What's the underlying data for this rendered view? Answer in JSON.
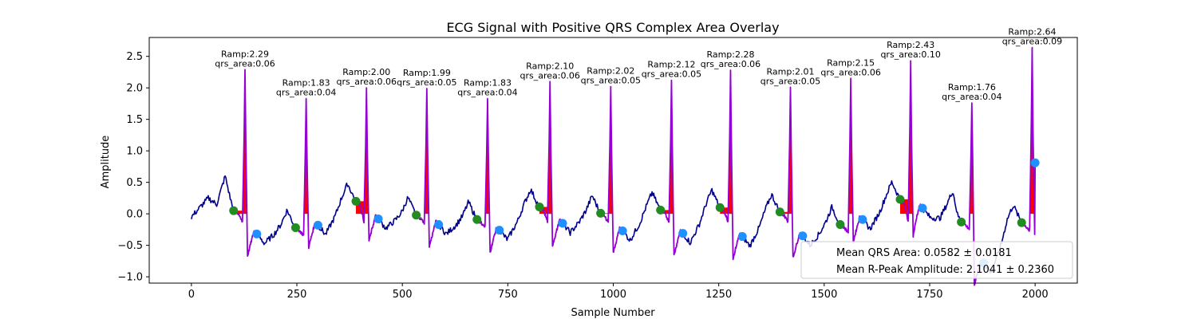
{
  "chart_data": {
    "type": "line",
    "title": "ECG Signal with Positive QRS Complex Area Overlay",
    "xlabel": "Sample Number",
    "ylabel": "Amplitude",
    "xlim": [
      -100,
      2100
    ],
    "ylim": [
      -1.1,
      2.8
    ],
    "xticks": [
      0,
      250,
      500,
      750,
      1000,
      1250,
      1500,
      1750,
      2000
    ],
    "yticks": [
      -1.0,
      -0.5,
      0.0,
      0.5,
      1.0,
      1.5,
      2.0,
      2.5
    ],
    "xtick_labels": [
      "0",
      "250",
      "500",
      "750",
      "1000",
      "1250",
      "1500",
      "1750",
      "2000"
    ],
    "ytick_labels": [
      "−1.0",
      "−0.5",
      "0.0",
      "0.5",
      "1.0",
      "1.5",
      "2.0",
      "2.5"
    ],
    "grid": false,
    "colors": {
      "signal": "#00008b",
      "qrs_segment": "#9400d3",
      "qrs_area": "#ff0000",
      "onset_marker": "#228b22",
      "offset_marker": "#1e90ff"
    },
    "beats": [
      {
        "r_x": 127,
        "r_amp": 2.29,
        "area": 0.06,
        "on_x": 100,
        "on_y": 0.05,
        "off_x": 155,
        "off_y": -0.32,
        "ramp_label": "Ramp:2.29",
        "area_label": "qrs_area:0.06"
      },
      {
        "r_x": 272,
        "r_amp": 1.83,
        "area": 0.04,
        "on_x": 247,
        "on_y": -0.22,
        "off_x": 300,
        "off_y": -0.18,
        "ramp_label": "Ramp:1.83",
        "area_label": "qrs_area:0.04"
      },
      {
        "r_x": 415,
        "r_amp": 2.0,
        "area": 0.06,
        "on_x": 390,
        "on_y": 0.2,
        "off_x": 443,
        "off_y": -0.08,
        "ramp_label": "Ramp:2.00",
        "area_label": "qrs_area:0.06"
      },
      {
        "r_x": 558,
        "r_amp": 1.99,
        "area": 0.05,
        "on_x": 533,
        "on_y": -0.02,
        "off_x": 586,
        "off_y": -0.17,
        "ramp_label": "Ramp:1.99",
        "area_label": "qrs_area:0.05"
      },
      {
        "r_x": 702,
        "r_amp": 1.83,
        "area": 0.04,
        "on_x": 677,
        "on_y": -0.09,
        "off_x": 730,
        "off_y": -0.26,
        "ramp_label": "Ramp:1.83",
        "area_label": "qrs_area:0.04"
      },
      {
        "r_x": 850,
        "r_amp": 2.1,
        "area": 0.06,
        "on_x": 825,
        "on_y": 0.11,
        "off_x": 880,
        "off_y": -0.15,
        "ramp_label": "Ramp:2.10",
        "area_label": "qrs_area:0.06"
      },
      {
        "r_x": 994,
        "r_amp": 2.02,
        "area": 0.05,
        "on_x": 970,
        "on_y": 0.01,
        "off_x": 1022,
        "off_y": -0.27,
        "ramp_label": "Ramp:2.02",
        "area_label": "qrs_area:0.05"
      },
      {
        "r_x": 1138,
        "r_amp": 2.12,
        "area": 0.05,
        "on_x": 1112,
        "on_y": 0.06,
        "off_x": 1165,
        "off_y": -0.31,
        "ramp_label": "Ramp:2.12",
        "area_label": "qrs_area:0.05"
      },
      {
        "r_x": 1278,
        "r_amp": 2.28,
        "area": 0.06,
        "on_x": 1253,
        "on_y": 0.1,
        "off_x": 1306,
        "off_y": -0.36,
        "ramp_label": "Ramp:2.28",
        "area_label": "qrs_area:0.06"
      },
      {
        "r_x": 1420,
        "r_amp": 2.01,
        "area": 0.05,
        "on_x": 1395,
        "on_y": 0.03,
        "off_x": 1449,
        "off_y": -0.35,
        "ramp_label": "Ramp:2.01",
        "area_label": "qrs_area:0.05"
      },
      {
        "r_x": 1563,
        "r_amp": 2.15,
        "area": 0.06,
        "on_x": 1538,
        "on_y": -0.17,
        "off_x": 1591,
        "off_y": -0.09,
        "ramp_label": "Ramp:2.15",
        "area_label": "qrs_area:0.06"
      },
      {
        "r_x": 1705,
        "r_amp": 2.43,
        "area": 0.1,
        "on_x": 1680,
        "on_y": 0.23,
        "off_x": 1733,
        "off_y": 0.09,
        "ramp_label": "Ramp:2.43",
        "area_label": "qrs_area:0.10"
      },
      {
        "r_x": 1850,
        "r_amp": 1.76,
        "area": 0.04,
        "on_x": 1825,
        "on_y": -0.13,
        "off_x": 1878,
        "off_y": -0.78,
        "ramp_label": "Ramp:1.76",
        "area_label": "qrs_area:0.04"
      },
      {
        "r_x": 1993,
        "r_amp": 2.64,
        "area": 0.09,
        "on_x": 1968,
        "on_y": -0.14,
        "off_x": 2000,
        "off_y": 0.81,
        "ramp_label": "Ramp:2.64",
        "area_label": "qrs_area:0.09"
      }
    ],
    "legend": {
      "placement": "lower-right",
      "entries": [
        "Mean QRS Area: 0.0582 ± 0.0181",
        "Mean R-Peak Amplitude: 2.1041 ± 0.2360"
      ]
    }
  }
}
